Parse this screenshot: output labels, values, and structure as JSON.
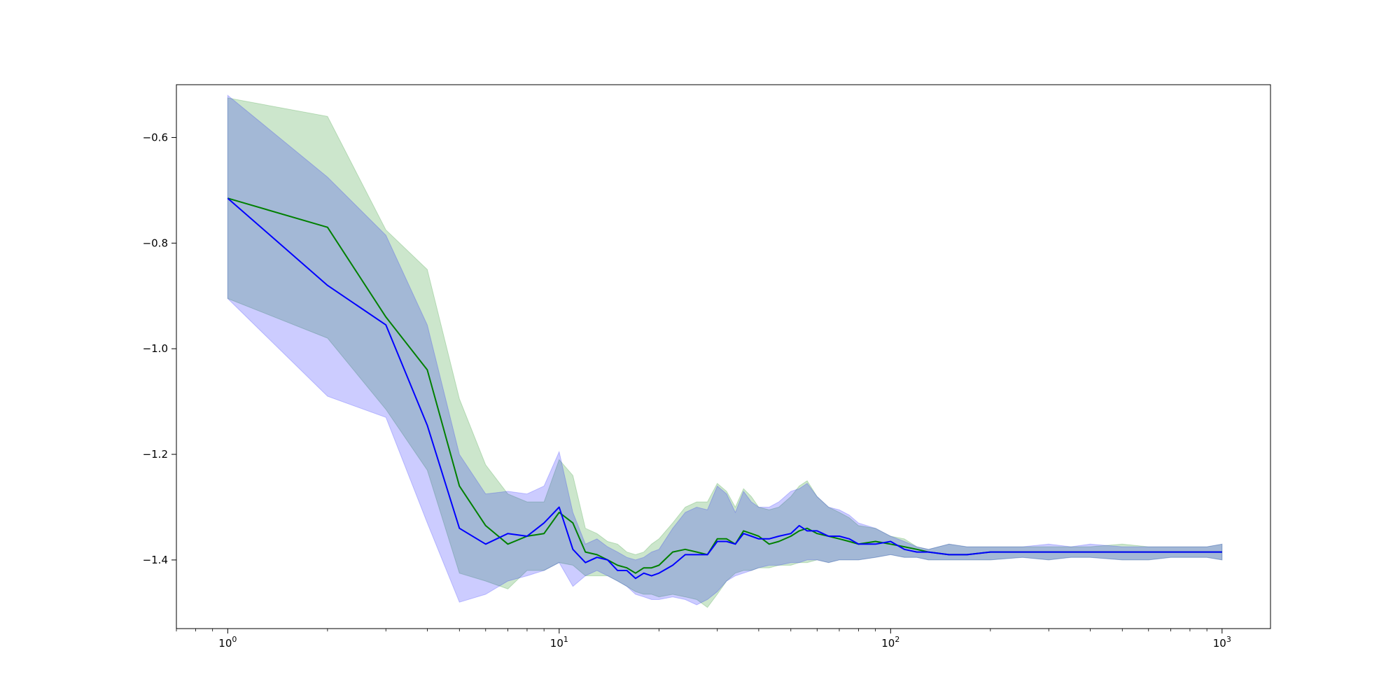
{
  "chart_data": {
    "type": "line",
    "title": "",
    "xlabel": "",
    "ylabel": "",
    "x_scale": "log",
    "xlim": [
      0.7,
      1400
    ],
    "ylim": [
      -1.53,
      -0.5
    ],
    "grid": false,
    "x_ticks": [
      {
        "value": 1,
        "base": "10",
        "exp": "0"
      },
      {
        "value": 10,
        "base": "10",
        "exp": "1"
      },
      {
        "value": 100,
        "base": "10",
        "exp": "2"
      },
      {
        "value": 1000,
        "base": "10",
        "exp": "3"
      }
    ],
    "y_ticks": [
      {
        "value": -0.6,
        "label": "−0.6"
      },
      {
        "value": -0.8,
        "label": "−0.8"
      },
      {
        "value": -1.0,
        "label": "−1.0"
      },
      {
        "value": -1.2,
        "label": "−1.2"
      },
      {
        "value": -1.4,
        "label": "−1.4"
      }
    ],
    "series": [
      {
        "color": "#008000",
        "band_color": "#008000",
        "x": [
          1,
          2,
          3,
          4,
          5,
          6,
          7,
          8,
          9,
          10,
          11,
          12,
          13,
          14,
          15,
          16,
          17,
          18,
          19,
          20,
          22,
          24,
          26,
          28,
          30,
          32,
          34,
          36,
          38,
          40,
          43,
          46,
          50,
          53,
          56,
          60,
          65,
          70,
          75,
          80,
          90,
          100,
          110,
          120,
          130,
          150,
          170,
          200,
          250,
          300,
          350,
          400,
          500,
          600,
          700,
          800,
          900,
          1000
        ],
        "y": [
          -0.715,
          -0.77,
          -0.94,
          -1.04,
          -1.26,
          -1.335,
          -1.37,
          -1.355,
          -1.35,
          -1.31,
          -1.33,
          -1.385,
          -1.39,
          -1.4,
          -1.41,
          -1.415,
          -1.425,
          -1.415,
          -1.415,
          -1.41,
          -1.385,
          -1.38,
          -1.385,
          -1.39,
          -1.36,
          -1.36,
          -1.37,
          -1.345,
          -1.35,
          -1.355,
          -1.37,
          -1.365,
          -1.355,
          -1.345,
          -1.34,
          -1.35,
          -1.355,
          -1.36,
          -1.365,
          -1.37,
          -1.365,
          -1.37,
          -1.375,
          -1.38,
          -1.385,
          -1.39,
          -1.39,
          -1.385,
          -1.385,
          -1.385,
          -1.385,
          -1.385,
          -1.385,
          -1.385,
          -1.385,
          -1.385,
          -1.385,
          -1.385
        ],
        "lower": [
          -0.905,
          -0.98,
          -1.115,
          -1.23,
          -1.425,
          -1.44,
          -1.455,
          -1.42,
          -1.42,
          -1.405,
          -1.41,
          -1.43,
          -1.43,
          -1.43,
          -1.44,
          -1.45,
          -1.46,
          -1.465,
          -1.465,
          -1.47,
          -1.465,
          -1.47,
          -1.475,
          -1.49,
          -1.465,
          -1.44,
          -1.425,
          -1.42,
          -1.42,
          -1.415,
          -1.415,
          -1.41,
          -1.41,
          -1.405,
          -1.405,
          -1.4,
          -1.405,
          -1.4,
          -1.4,
          -1.4,
          -1.395,
          -1.39,
          -1.395,
          -1.395,
          -1.4,
          -1.4,
          -1.4,
          -1.4,
          -1.395,
          -1.4,
          -1.395,
          -1.395,
          -1.4,
          -1.4,
          -1.395,
          -1.395,
          -1.395,
          -1.4
        ],
        "upper": [
          -0.525,
          -0.56,
          -0.775,
          -0.85,
          -1.095,
          -1.22,
          -1.275,
          -1.29,
          -1.29,
          -1.21,
          -1.24,
          -1.34,
          -1.35,
          -1.365,
          -1.37,
          -1.385,
          -1.39,
          -1.385,
          -1.37,
          -1.36,
          -1.33,
          -1.3,
          -1.29,
          -1.29,
          -1.255,
          -1.27,
          -1.3,
          -1.265,
          -1.28,
          -1.3,
          -1.305,
          -1.3,
          -1.28,
          -1.26,
          -1.25,
          -1.28,
          -1.3,
          -1.31,
          -1.32,
          -1.335,
          -1.34,
          -1.355,
          -1.36,
          -1.375,
          -1.38,
          -1.37,
          -1.375,
          -1.375,
          -1.375,
          -1.375,
          -1.375,
          -1.375,
          -1.37,
          -1.375,
          -1.375,
          -1.375,
          -1.375,
          -1.37
        ]
      },
      {
        "color": "#0000ff",
        "band_color": "#0000ff",
        "x": [
          1,
          2,
          3,
          4,
          5,
          6,
          7,
          8,
          9,
          10,
          11,
          12,
          13,
          14,
          15,
          16,
          17,
          18,
          19,
          20,
          22,
          24,
          26,
          28,
          30,
          32,
          34,
          36,
          38,
          40,
          43,
          46,
          50,
          53,
          56,
          60,
          65,
          70,
          75,
          80,
          90,
          100,
          110,
          120,
          130,
          150,
          170,
          200,
          250,
          300,
          350,
          400,
          500,
          600,
          700,
          800,
          900,
          1000
        ],
        "y": [
          -0.715,
          -0.88,
          -0.955,
          -1.145,
          -1.34,
          -1.37,
          -1.35,
          -1.355,
          -1.33,
          -1.3,
          -1.38,
          -1.405,
          -1.395,
          -1.4,
          -1.42,
          -1.42,
          -1.435,
          -1.425,
          -1.43,
          -1.425,
          -1.41,
          -1.39,
          -1.39,
          -1.39,
          -1.365,
          -1.365,
          -1.37,
          -1.35,
          -1.355,
          -1.36,
          -1.36,
          -1.355,
          -1.35,
          -1.335,
          -1.345,
          -1.345,
          -1.355,
          -1.355,
          -1.36,
          -1.37,
          -1.37,
          -1.365,
          -1.38,
          -1.385,
          -1.385,
          -1.39,
          -1.39,
          -1.385,
          -1.385,
          -1.385,
          -1.385,
          -1.385,
          -1.385,
          -1.385,
          -1.385,
          -1.385,
          -1.385,
          -1.385
        ],
        "lower": [
          -0.905,
          -1.09,
          -1.13,
          -1.33,
          -1.48,
          -1.465,
          -1.44,
          -1.43,
          -1.42,
          -1.405,
          -1.45,
          -1.43,
          -1.42,
          -1.43,
          -1.44,
          -1.45,
          -1.465,
          -1.47,
          -1.475,
          -1.475,
          -1.47,
          -1.475,
          -1.485,
          -1.475,
          -1.46,
          -1.44,
          -1.43,
          -1.425,
          -1.42,
          -1.415,
          -1.41,
          -1.41,
          -1.405,
          -1.405,
          -1.4,
          -1.4,
          -1.405,
          -1.4,
          -1.4,
          -1.4,
          -1.395,
          -1.39,
          -1.395,
          -1.395,
          -1.4,
          -1.4,
          -1.4,
          -1.4,
          -1.395,
          -1.4,
          -1.395,
          -1.395,
          -1.4,
          -1.4,
          -1.395,
          -1.395,
          -1.395,
          -1.4
        ],
        "upper": [
          -0.52,
          -0.675,
          -0.785,
          -0.955,
          -1.2,
          -1.275,
          -1.27,
          -1.275,
          -1.26,
          -1.195,
          -1.31,
          -1.37,
          -1.36,
          -1.375,
          -1.385,
          -1.395,
          -1.4,
          -1.395,
          -1.385,
          -1.38,
          -1.34,
          -1.31,
          -1.3,
          -1.305,
          -1.26,
          -1.275,
          -1.31,
          -1.27,
          -1.29,
          -1.3,
          -1.3,
          -1.29,
          -1.27,
          -1.265,
          -1.255,
          -1.28,
          -1.3,
          -1.305,
          -1.315,
          -1.33,
          -1.34,
          -1.355,
          -1.365,
          -1.375,
          -1.38,
          -1.37,
          -1.375,
          -1.375,
          -1.375,
          -1.37,
          -1.375,
          -1.37,
          -1.375,
          -1.375,
          -1.375,
          -1.375,
          -1.375,
          -1.37
        ]
      }
    ]
  }
}
